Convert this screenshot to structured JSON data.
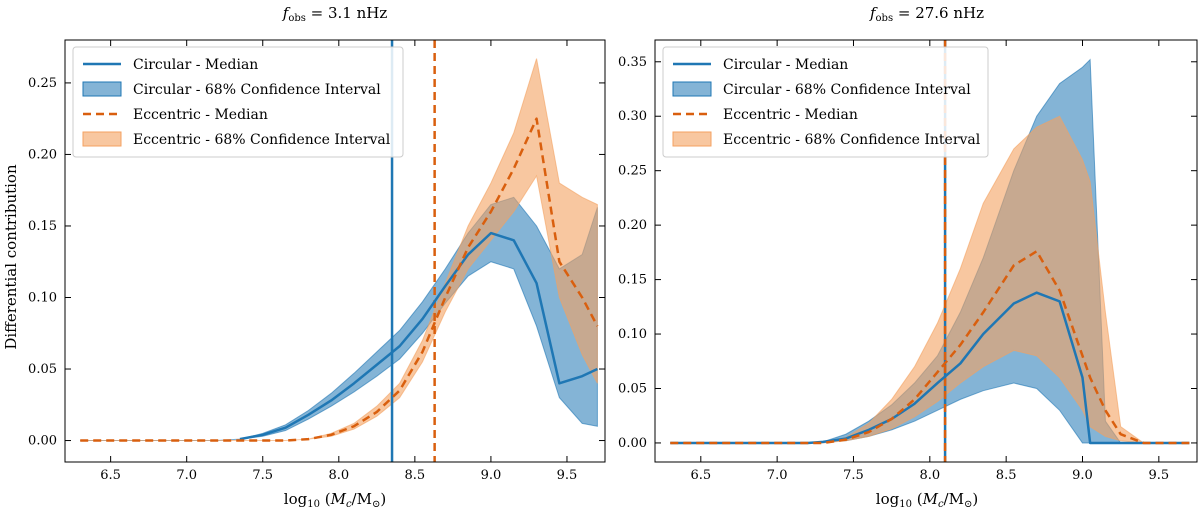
{
  "chart_data": [
    {
      "type": "line",
      "title": "f_obs = 3.1 nHz",
      "title_parts": {
        "symbol": "f",
        "subscript": "obs",
        "value": " = 3.1 nHz"
      },
      "xlabel": "log10 (Mc/M⊙)",
      "ylabel": "Differential contribution",
      "xlim": [
        6.2,
        9.75
      ],
      "ylim": [
        -0.015,
        0.28
      ],
      "xticks": [
        6.5,
        7.0,
        7.5,
        8.0,
        8.5,
        9.0,
        9.5
      ],
      "xtick_labels": [
        "6.5",
        "7.0",
        "7.5",
        "8.0",
        "8.5",
        "9.0",
        "9.5"
      ],
      "yticks": [
        0.0,
        0.05,
        0.1,
        0.15,
        0.2,
        0.25
      ],
      "ytick_labels": [
        "0.00",
        "0.05",
        "0.10",
        "0.15",
        "0.20",
        "0.25"
      ],
      "legend_position": "top-left",
      "legend": [
        "Circular - Median",
        "Circular - 68% Confidence Interval",
        "Eccentric - Median",
        "Eccentric - 68% Confidence Interval"
      ],
      "x": [
        6.3,
        6.45,
        6.6,
        6.75,
        6.9,
        7.05,
        7.2,
        7.35,
        7.5,
        7.65,
        7.8,
        7.95,
        8.1,
        8.25,
        8.4,
        8.55,
        8.7,
        8.85,
        9.0,
        9.15,
        9.3,
        9.45,
        9.6,
        9.7
      ],
      "series": [
        {
          "name": "Circular - Median",
          "style": "solid",
          "color": "#1f77b4",
          "start": 7.28,
          "values": [
            0,
            0,
            0,
            0,
            0,
            0,
            0,
            0.001,
            0.004,
            0.009,
            0.018,
            0.028,
            0.04,
            0.053,
            0.066,
            0.085,
            0.108,
            0.13,
            0.145,
            0.14,
            0.11,
            0.04,
            0.045,
            0.05
          ]
        },
        {
          "name": "Circular - 68% Confidence Interval",
          "type": "band",
          "color": "#1f77b4",
          "lower": [
            0,
            0,
            0,
            0,
            0,
            0,
            0,
            0.001,
            0.003,
            0.007,
            0.015,
            0.024,
            0.034,
            0.045,
            0.057,
            0.075,
            0.096,
            0.115,
            0.125,
            0.12,
            0.08,
            0.03,
            0.012,
            0.01
          ],
          "upper": [
            0,
            0,
            0,
            0,
            0,
            0,
            0,
            0.001,
            0.005,
            0.011,
            0.021,
            0.033,
            0.047,
            0.062,
            0.077,
            0.097,
            0.12,
            0.145,
            0.165,
            0.17,
            0.15,
            0.12,
            0.13,
            0.163
          ]
        },
        {
          "name": "Eccentric - Median",
          "style": "dashed",
          "color": "#d95f0e",
          "values": [
            0,
            0,
            0,
            0,
            0,
            0,
            0,
            0,
            0,
            0,
            0.001,
            0.004,
            0.01,
            0.02,
            0.035,
            0.062,
            0.1,
            0.135,
            0.16,
            0.19,
            0.225,
            0.125,
            0.1,
            0.08
          ]
        },
        {
          "name": "Eccentric - 68% Confidence Interval",
          "type": "band",
          "color": "#f4a261",
          "lower": [
            0,
            0,
            0,
            0,
            0,
            0,
            0,
            0,
            0,
            0,
            0.001,
            0.003,
            0.008,
            0.017,
            0.03,
            0.055,
            0.09,
            0.12,
            0.14,
            0.16,
            0.185,
            0.1,
            0.06,
            0.04
          ],
          "upper": [
            0,
            0,
            0,
            0,
            0,
            0,
            0,
            0,
            0,
            0,
            0.001,
            0.005,
            0.012,
            0.024,
            0.04,
            0.07,
            0.11,
            0.15,
            0.18,
            0.215,
            0.267,
            0.18,
            0.17,
            0.165
          ]
        }
      ],
      "vlines": [
        {
          "x": 8.35,
          "style": "solid",
          "color": "#1f77b4"
        },
        {
          "x": 8.63,
          "style": "dashed",
          "color": "#d95f0e"
        }
      ]
    },
    {
      "type": "line",
      "title": "f_obs = 27.6 nHz",
      "title_parts": {
        "symbol": "f",
        "subscript": "obs",
        "value": " = 27.6 nHz"
      },
      "xlabel": "log10 (Mc/M⊙)",
      "ylabel": "",
      "xlim": [
        6.2,
        9.75
      ],
      "ylim": [
        -0.0175,
        0.37
      ],
      "xticks": [
        6.5,
        7.0,
        7.5,
        8.0,
        8.5,
        9.0,
        9.5
      ],
      "xtick_labels": [
        "6.5",
        "7.0",
        "7.5",
        "8.0",
        "8.5",
        "9.0",
        "9.5"
      ],
      "yticks": [
        0.0,
        0.05,
        0.1,
        0.15,
        0.2,
        0.25,
        0.3,
        0.35
      ],
      "ytick_labels": [
        "0.00",
        "0.05",
        "0.10",
        "0.15",
        "0.20",
        "0.25",
        "0.30",
        "0.35"
      ],
      "legend_position": "top-left",
      "legend": [
        "Circular - Median",
        "Circular - 68% Confidence Interval",
        "Eccentric - Median",
        "Eccentric - 68% Confidence Interval"
      ],
      "x": [
        6.3,
        6.45,
        6.6,
        6.75,
        6.9,
        7.05,
        7.2,
        7.3,
        7.45,
        7.6,
        7.75,
        7.9,
        8.05,
        8.2,
        8.35,
        8.55,
        8.7,
        8.85,
        9.0,
        9.05,
        9.15,
        9.25,
        9.4,
        9.55,
        9.7
      ],
      "series": [
        {
          "name": "Circular - Median",
          "style": "solid",
          "color": "#1f77b4",
          "values": [
            0,
            0,
            0,
            0,
            0,
            0,
            0,
            0.001,
            0.004,
            0.012,
            0.022,
            0.036,
            0.055,
            0.073,
            0.1,
            0.128,
            0.138,
            0.13,
            0.06,
            0,
            0,
            0,
            0,
            0,
            0
          ]
        },
        {
          "name": "Circular - 68% Confidence Interval",
          "type": "band",
          "color": "#1f77b4",
          "lower": [
            0,
            0,
            0,
            0,
            0,
            0,
            0,
            0.001,
            0.002,
            0.006,
            0.012,
            0.02,
            0.03,
            0.04,
            0.048,
            0.055,
            0.05,
            0.03,
            0,
            0,
            0,
            0,
            0,
            0,
            0
          ],
          "upper": [
            0,
            0,
            0,
            0,
            0,
            0,
            0,
            0.001,
            0.008,
            0.02,
            0.035,
            0.055,
            0.08,
            0.12,
            0.17,
            0.25,
            0.3,
            0.33,
            0.345,
            0.352,
            0.02,
            0,
            0,
            0,
            0
          ]
        },
        {
          "name": "Eccentric - Median",
          "style": "dashed",
          "color": "#d95f0e",
          "values": [
            0,
            0,
            0,
            0,
            0,
            0,
            0,
            0,
            0.003,
            0.01,
            0.022,
            0.04,
            0.065,
            0.09,
            0.12,
            0.163,
            0.176,
            0.14,
            0.08,
            0.06,
            0.03,
            0.008,
            0,
            0,
            0
          ]
        },
        {
          "name": "Eccentric - 68% Confidence Interval",
          "type": "band",
          "color": "#f4a261",
          "lower": [
            0,
            0,
            0,
            0,
            0,
            0,
            0,
            0,
            0.002,
            0.006,
            0.013,
            0.024,
            0.038,
            0.055,
            0.07,
            0.085,
            0.08,
            0.06,
            0.03,
            0.015,
            0.006,
            0.002,
            0,
            0,
            0
          ],
          "upper": [
            0,
            0,
            0,
            0,
            0,
            0,
            0,
            0,
            0.005,
            0.018,
            0.04,
            0.07,
            0.11,
            0.16,
            0.22,
            0.27,
            0.29,
            0.3,
            0.26,
            0.24,
            0.12,
            0.015,
            0,
            0,
            0
          ]
        }
      ],
      "vlines": [
        {
          "x": 8.1,
          "style": "solid",
          "color": "#1f77b4"
        },
        {
          "x": 8.1,
          "style": "dashed",
          "color": "#d95f0e"
        }
      ]
    }
  ]
}
